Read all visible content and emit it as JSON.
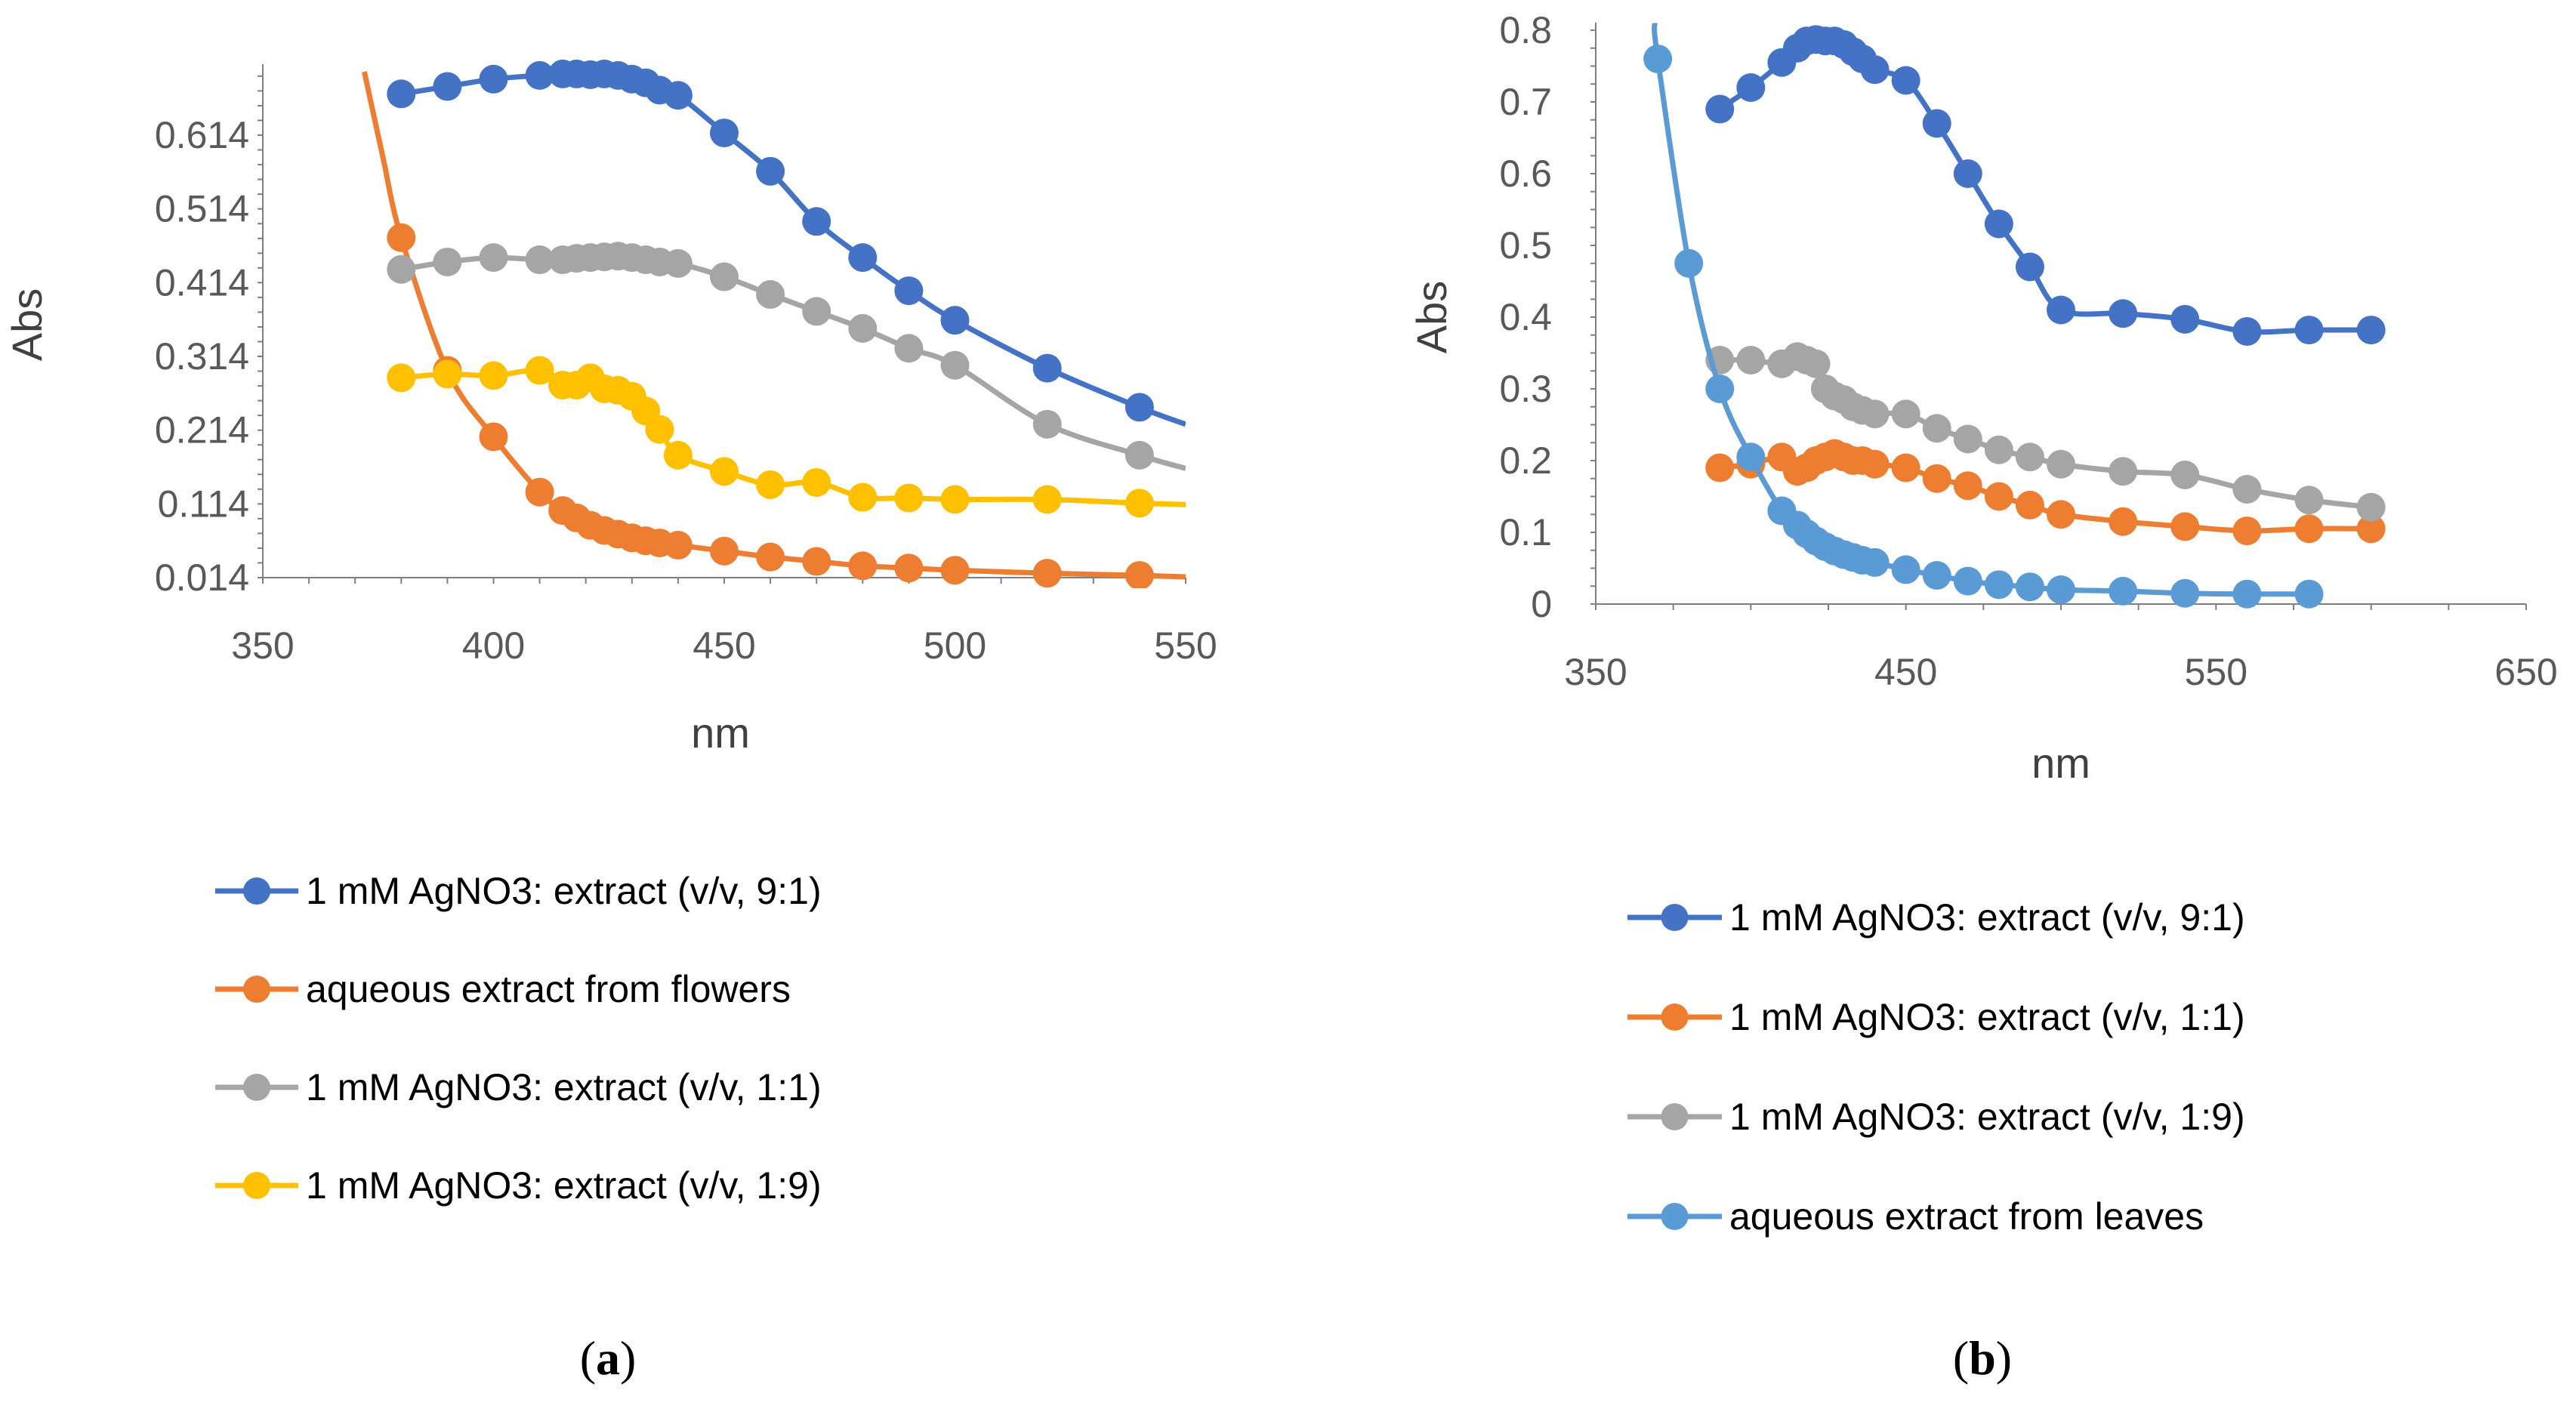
{
  "chart_data": [
    {
      "type": "line",
      "caption_letter": "a",
      "xlabel": "nm",
      "ylabel": "Abs",
      "xlim": [
        350,
        550
      ],
      "ylim": [
        0.014,
        0.7
      ],
      "x_ticks": [
        "350",
        "400",
        "450",
        "500",
        "550"
      ],
      "y_ticks": [
        "0.014",
        "0.114",
        "0.214",
        "0.314",
        "0.414",
        "0.514",
        "0.614"
      ],
      "x_tick_values": [
        350,
        400,
        450,
        500,
        550
      ],
      "y_tick_values": [
        0.014,
        0.114,
        0.214,
        0.314,
        0.414,
        0.514,
        0.614
      ],
      "grid": false,
      "legend_position": "bottom",
      "series": [
        {
          "name": "1 mM AgNO3: extract (v/v, 9:1)",
          "color": "#4472C4",
          "x": [
            380,
            390,
            400,
            410,
            415,
            418,
            421,
            424,
            427,
            430,
            433,
            436,
            440,
            450,
            460,
            470,
            480,
            490,
            500,
            520,
            540
          ],
          "y": [
            0.67,
            0.68,
            0.69,
            0.695,
            0.697,
            0.697,
            0.696,
            0.697,
            0.695,
            0.69,
            0.685,
            0.675,
            0.668,
            0.617,
            0.565,
            0.497,
            0.448,
            0.403,
            0.363,
            0.298,
            0.245
          ],
          "tail": [
            [
              550,
              0.222
            ]
          ]
        },
        {
          "name": "aqueous extract from flowers",
          "color": "#ED7D31",
          "x": [
            380,
            390,
            400,
            410,
            415,
            418,
            421,
            424,
            427,
            430,
            433,
            436,
            440,
            450,
            460,
            470,
            480,
            490,
            500,
            520,
            540
          ],
          "y": [
            0.475,
            0.295,
            0.205,
            0.13,
            0.105,
            0.095,
            0.085,
            0.078,
            0.073,
            0.068,
            0.064,
            0.061,
            0.058,
            0.05,
            0.042,
            0.036,
            0.03,
            0.027,
            0.024,
            0.02,
            0.017
          ],
          "head": [
            [
              372,
              0.7
            ],
            [
              376,
              0.585
            ]
          ],
          "tail": [
            [
              550,
              0.015
            ]
          ]
        },
        {
          "name": "1 mM AgNO3: extract (v/v, 1:1)",
          "color": "#A5A5A5",
          "x": [
            380,
            390,
            400,
            410,
            415,
            418,
            421,
            424,
            427,
            430,
            433,
            436,
            440,
            450,
            460,
            470,
            480,
            490,
            500,
            520,
            540
          ],
          "y": [
            0.432,
            0.442,
            0.448,
            0.445,
            0.445,
            0.447,
            0.448,
            0.449,
            0.45,
            0.448,
            0.445,
            0.442,
            0.44,
            0.422,
            0.398,
            0.375,
            0.352,
            0.325,
            0.302,
            0.222,
            0.18
          ],
          "tail": [
            [
              550,
              0.162
            ]
          ]
        },
        {
          "name": "1 mM AgNO3: extract (v/v, 1:9)",
          "color": "#FFC000",
          "x": [
            380,
            390,
            400,
            410,
            415,
            418,
            421,
            424,
            427,
            430,
            433,
            436,
            440,
            450,
            460,
            470,
            480,
            490,
            500,
            520,
            540
          ],
          "y": [
            0.285,
            0.29,
            0.288,
            0.295,
            0.275,
            0.275,
            0.285,
            0.27,
            0.268,
            0.26,
            0.24,
            0.215,
            0.18,
            0.158,
            0.14,
            0.143,
            0.123,
            0.122,
            0.12,
            0.12,
            0.115
          ],
          "tail": [
            [
              550,
              0.113
            ]
          ]
        }
      ]
    },
    {
      "type": "line",
      "caption_letter": "b",
      "xlabel": "nm",
      "ylabel": "Abs",
      "xlim": [
        350,
        650
      ],
      "ylim": [
        0,
        0.8
      ],
      "x_ticks": [
        "350",
        "450",
        "550",
        "650"
      ],
      "y_ticks": [
        "0",
        "0.1",
        "0.2",
        "0.3",
        "0.4",
        "0.5",
        "0.6",
        "0.7",
        "0.8"
      ],
      "x_tick_values": [
        350,
        450,
        550,
        650
      ],
      "y_tick_values": [
        0,
        0.1,
        0.2,
        0.3,
        0.4,
        0.5,
        0.6,
        0.7,
        0.8
      ],
      "grid": false,
      "legend_position": "bottom",
      "series": [
        {
          "name": "1 mM AgNO3: extract (v/v, 9:1)",
          "color": "#4472C4",
          "x": [
            390,
            400,
            410,
            415,
            418,
            421,
            424,
            427,
            430,
            433,
            436,
            440,
            450,
            460,
            470,
            480,
            490,
            500,
            520,
            540,
            560,
            580,
            600
          ],
          "y": [
            0.69,
            0.72,
            0.755,
            0.775,
            0.785,
            0.787,
            0.785,
            0.785,
            0.78,
            0.77,
            0.76,
            0.745,
            0.73,
            0.67,
            0.6,
            0.53,
            0.47,
            0.41,
            0.405,
            0.397,
            0.38,
            0.382,
            0.382
          ]
        },
        {
          "name": "1 mM AgNO3: extract (v/v, 1:1)",
          "color": "#ED7D31",
          "x": [
            390,
            400,
            410,
            415,
            418,
            421,
            424,
            427,
            430,
            433,
            436,
            440,
            450,
            460,
            470,
            480,
            490,
            500,
            520,
            540,
            560,
            580,
            600
          ],
          "y": [
            0.19,
            0.195,
            0.205,
            0.185,
            0.19,
            0.2,
            0.205,
            0.21,
            0.205,
            0.2,
            0.2,
            0.195,
            0.19,
            0.175,
            0.165,
            0.15,
            0.138,
            0.125,
            0.115,
            0.108,
            0.102,
            0.105,
            0.105
          ]
        },
        {
          "name": "1 mM AgNO3: extract (v/v, 1:9)",
          "color": "#A5A5A5",
          "x": [
            390,
            400,
            410,
            415,
            418,
            421,
            424,
            427,
            430,
            433,
            436,
            440,
            450,
            460,
            470,
            480,
            490,
            500,
            520,
            540,
            560,
            580,
            600
          ],
          "y": [
            0.34,
            0.34,
            0.335,
            0.345,
            0.34,
            0.335,
            0.3,
            0.29,
            0.285,
            0.275,
            0.27,
            0.265,
            0.265,
            0.245,
            0.23,
            0.215,
            0.205,
            0.195,
            0.185,
            0.18,
            0.16,
            0.145,
            0.135
          ]
        },
        {
          "name": "aqueous extract from leaves",
          "color": "#5B9BD5",
          "x": [
            370,
            380,
            390,
            400,
            410,
            415,
            418,
            421,
            424,
            427,
            430,
            433,
            436,
            440,
            450,
            460,
            470,
            480,
            490,
            500,
            520,
            540,
            560,
            580
          ],
          "y": [
            0.76,
            0.475,
            0.3,
            0.205,
            0.13,
            0.11,
            0.098,
            0.088,
            0.08,
            0.074,
            0.069,
            0.065,
            0.061,
            0.058,
            0.048,
            0.04,
            0.032,
            0.027,
            0.024,
            0.02,
            0.018,
            0.015,
            0.014,
            0.014
          ],
          "head": [
            [
              369,
              0.81
            ]
          ]
        }
      ]
    }
  ]
}
